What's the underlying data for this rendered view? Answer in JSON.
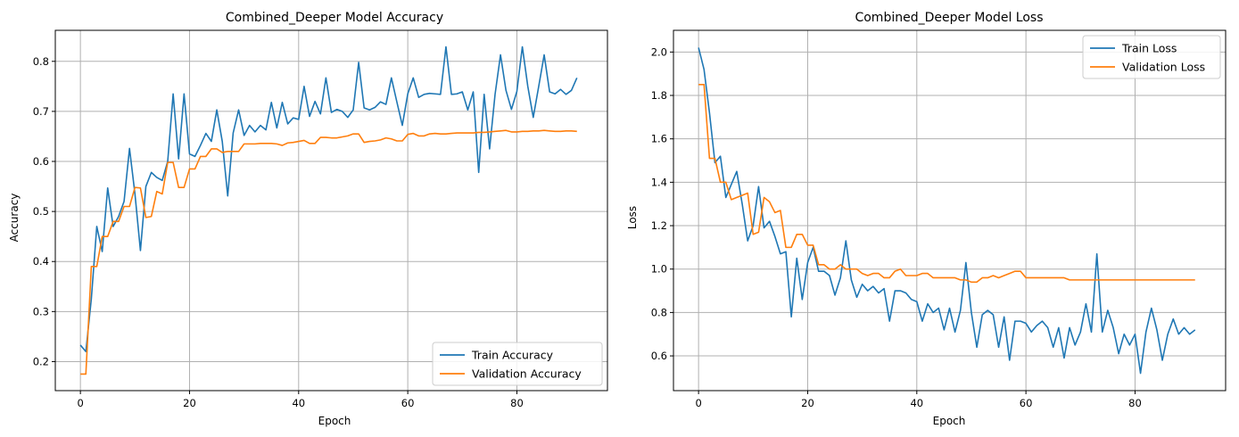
{
  "chart_data": [
    {
      "type": "line",
      "title": "Combined_Deeper Model Accuracy",
      "xlabel": "Epoch",
      "ylabel": "Accuracy",
      "xlim": [
        -4.6,
        96.6
      ],
      "ylim": [
        0.142,
        0.862
      ],
      "xticks": [
        0,
        20,
        40,
        60,
        80
      ],
      "yticks": [
        0.2,
        0.3,
        0.4,
        0.5,
        0.6,
        0.7,
        0.8
      ],
      "grid": true,
      "legend_position": "lower-right",
      "series": [
        {
          "name": "Train Accuracy",
          "color": "#1f77b4",
          "values": [
            0.233,
            0.22,
            0.325,
            0.47,
            0.42,
            0.547,
            0.47,
            0.49,
            0.52,
            0.626,
            0.535,
            0.422,
            0.55,
            0.578,
            0.568,
            0.562,
            0.6,
            0.735,
            0.605,
            0.735,
            0.615,
            0.61,
            0.632,
            0.656,
            0.64,
            0.703,
            0.64,
            0.531,
            0.657,
            0.703,
            0.652,
            0.672,
            0.659,
            0.672,
            0.663,
            0.718,
            0.667,
            0.718,
            0.675,
            0.687,
            0.684,
            0.75,
            0.69,
            0.72,
            0.695,
            0.767,
            0.698,
            0.704,
            0.7,
            0.688,
            0.703,
            0.798,
            0.707,
            0.703,
            0.708,
            0.719,
            0.714,
            0.767,
            0.719,
            0.672,
            0.735,
            0.767,
            0.728,
            0.734,
            0.736,
            0.735,
            0.734,
            0.829,
            0.734,
            0.735,
            0.739,
            0.703,
            0.739,
            0.578,
            0.734,
            0.625,
            0.734,
            0.813,
            0.742,
            0.704,
            0.74,
            0.829,
            0.75,
            0.688,
            0.75,
            0.813,
            0.739,
            0.735,
            0.744,
            0.734,
            0.742,
            0.767
          ]
        },
        {
          "name": "Validation Accuracy",
          "color": "#ff7f0e",
          "values": [
            0.175,
            0.175,
            0.39,
            0.39,
            0.45,
            0.45,
            0.48,
            0.48,
            0.51,
            0.51,
            0.548,
            0.547,
            0.488,
            0.49,
            0.54,
            0.535,
            0.598,
            0.598,
            0.548,
            0.548,
            0.585,
            0.585,
            0.61,
            0.61,
            0.625,
            0.625,
            0.618,
            0.62,
            0.62,
            0.62,
            0.635,
            0.635,
            0.635,
            0.636,
            0.636,
            0.636,
            0.635,
            0.632,
            0.637,
            0.638,
            0.64,
            0.642,
            0.636,
            0.636,
            0.648,
            0.648,
            0.647,
            0.647,
            0.649,
            0.651,
            0.655,
            0.655,
            0.638,
            0.64,
            0.641,
            0.643,
            0.647,
            0.645,
            0.641,
            0.641,
            0.654,
            0.656,
            0.651,
            0.651,
            0.655,
            0.656,
            0.655,
            0.655,
            0.656,
            0.657,
            0.657,
            0.657,
            0.657,
            0.658,
            0.658,
            0.659,
            0.66,
            0.661,
            0.662,
            0.659,
            0.659,
            0.66,
            0.66,
            0.661,
            0.661,
            0.662,
            0.661,
            0.66,
            0.66,
            0.661,
            0.661,
            0.66
          ]
        }
      ]
    },
    {
      "type": "line",
      "title": "Combined_Deeper Model Loss",
      "xlabel": "Epoch",
      "ylabel": "Loss",
      "xlim": [
        -4.6,
        96.6
      ],
      "ylim": [
        0.44,
        2.1
      ],
      "xticks": [
        0,
        20,
        40,
        60,
        80
      ],
      "yticks": [
        0.6,
        0.8,
        1.0,
        1.2,
        1.4,
        1.6,
        1.8,
        2.0
      ],
      "grid": true,
      "legend_position": "upper-right",
      "series": [
        {
          "name": "Train Loss",
          "color": "#1f77b4",
          "values": [
            2.02,
            1.92,
            1.72,
            1.49,
            1.52,
            1.33,
            1.39,
            1.45,
            1.3,
            1.13,
            1.2,
            1.38,
            1.19,
            1.22,
            1.15,
            1.07,
            1.08,
            0.78,
            1.05,
            0.86,
            1.03,
            1.1,
            0.99,
            0.99,
            0.97,
            0.88,
            0.96,
            1.13,
            0.95,
            0.87,
            0.93,
            0.9,
            0.92,
            0.89,
            0.91,
            0.76,
            0.9,
            0.9,
            0.89,
            0.86,
            0.85,
            0.76,
            0.84,
            0.8,
            0.82,
            0.72,
            0.82,
            0.71,
            0.81,
            1.03,
            0.8,
            0.64,
            0.79,
            0.81,
            0.79,
            0.64,
            0.78,
            0.58,
            0.76,
            0.76,
            0.75,
            0.71,
            0.74,
            0.76,
            0.73,
            0.64,
            0.73,
            0.59,
            0.73,
            0.65,
            0.71,
            0.84,
            0.71,
            1.07,
            0.71,
            0.81,
            0.73,
            0.61,
            0.7,
            0.65,
            0.7,
            0.52,
            0.71,
            0.82,
            0.72,
            0.58,
            0.7,
            0.77,
            0.7,
            0.73,
            0.7,
            0.72
          ]
        },
        {
          "name": "Validation Loss",
          "color": "#ff7f0e",
          "values": [
            1.85,
            1.85,
            1.51,
            1.51,
            1.4,
            1.4,
            1.32,
            1.33,
            1.34,
            1.35,
            1.16,
            1.17,
            1.33,
            1.31,
            1.26,
            1.27,
            1.1,
            1.1,
            1.16,
            1.16,
            1.11,
            1.11,
            1.02,
            1.02,
            1.0,
            1.0,
            1.02,
            1.0,
            1.0,
            1.0,
            0.98,
            0.97,
            0.98,
            0.98,
            0.96,
            0.96,
            0.99,
            1.0,
            0.97,
            0.97,
            0.97,
            0.98,
            0.98,
            0.96,
            0.96,
            0.96,
            0.96,
            0.96,
            0.95,
            0.95,
            0.94,
            0.94,
            0.96,
            0.96,
            0.97,
            0.96,
            0.97,
            0.98,
            0.99,
            0.99,
            0.96,
            0.96,
            0.96,
            0.96,
            0.96,
            0.96,
            0.96,
            0.96,
            0.95,
            0.95,
            0.95,
            0.95,
            0.95,
            0.95,
            0.95,
            0.95,
            0.95,
            0.95,
            0.95,
            0.95,
            0.95,
            0.95,
            0.95,
            0.95,
            0.95,
            0.95,
            0.95,
            0.95,
            0.95,
            0.95,
            0.95,
            0.95
          ]
        }
      ]
    }
  ]
}
